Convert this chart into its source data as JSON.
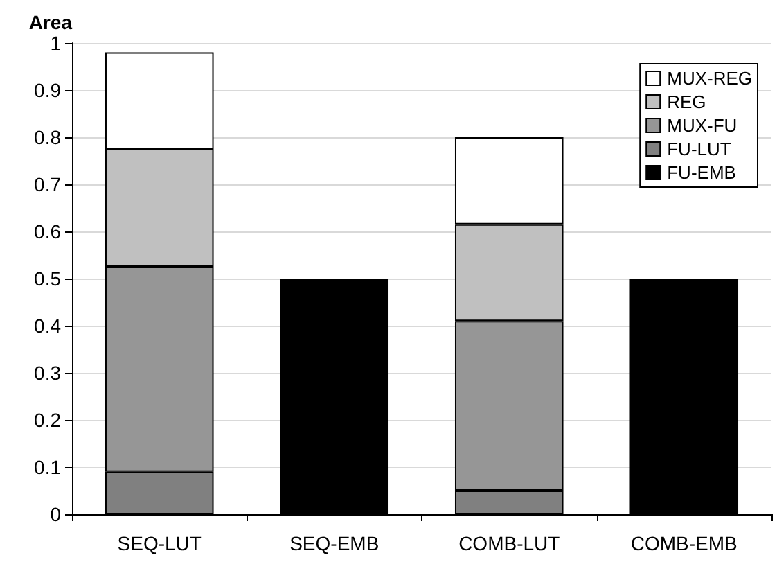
{
  "chart_data": {
    "type": "bar",
    "stacked": true,
    "ylabel": "Area",
    "categories": [
      "SEQ-LUT",
      "SEQ-EMB",
      "COMB-LUT",
      "COMB-EMB"
    ],
    "series": [
      {
        "name": "FU-EMB",
        "color": "#000000",
        "values": [
          null,
          0.5,
          null,
          0.5
        ]
      },
      {
        "name": "FU-LUT",
        "color": "#808080",
        "values": [
          0.09,
          null,
          0.05,
          null
        ]
      },
      {
        "name": "MUX-FU",
        "color": "#969696",
        "values": [
          0.435,
          null,
          0.36,
          null
        ]
      },
      {
        "name": "REG",
        "color": "#c0c0c0",
        "values": [
          0.25,
          null,
          0.205,
          null
        ]
      },
      {
        "name": "MUX-REG",
        "color": "#ffffff",
        "values": [
          0.205,
          null,
          0.185,
          null
        ]
      }
    ],
    "ylim": [
      0,
      1
    ],
    "yticks": [
      0,
      0.1,
      0.2,
      0.3,
      0.4,
      0.5,
      0.6,
      0.7,
      0.8,
      0.9,
      1
    ],
    "grid": "y",
    "legend": "top right"
  }
}
